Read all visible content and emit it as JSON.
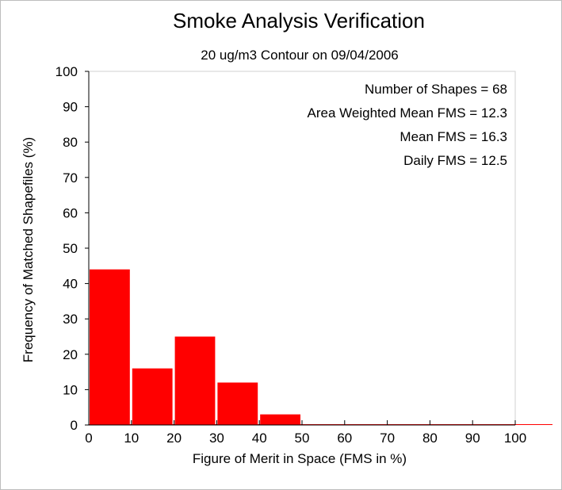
{
  "chart_data": {
    "type": "bar",
    "title": "Smoke Analysis Verification",
    "subtitle": "20 ug/m3 Contour on 09/04/2006",
    "xlabel": "Figure of Merit in Space (FMS in %)",
    "ylabel": "Frequency of Matched Shapefiles (%)",
    "x_ticks": [
      "0",
      "10",
      "20",
      "30",
      "40",
      "50",
      "60",
      "70",
      "80",
      "90",
      "100"
    ],
    "y_ticks": [
      "0",
      "10",
      "20",
      "30",
      "40",
      "50",
      "60",
      "70",
      "80",
      "90",
      "100"
    ],
    "xlim": [
      0,
      100
    ],
    "ylim": [
      0,
      100
    ],
    "bins": [
      {
        "from": 0,
        "to": 10,
        "value": 44
      },
      {
        "from": 10,
        "to": 20,
        "value": 16
      },
      {
        "from": 20,
        "to": 30,
        "value": 25
      },
      {
        "from": 30,
        "to": 40,
        "value": 12
      },
      {
        "from": 40,
        "to": 50,
        "value": 3
      },
      {
        "from": 50,
        "to": 60,
        "value": 0
      },
      {
        "from": 60,
        "to": 70,
        "value": 0
      },
      {
        "from": 70,
        "to": 80,
        "value": 0
      },
      {
        "from": 80,
        "to": 90,
        "value": 0
      },
      {
        "from": 90,
        "to": 100,
        "value": 0
      }
    ],
    "bar_color": "#ff0000",
    "grid": false,
    "annotations": [
      "Number of Shapes = 68",
      "Area Weighted Mean FMS = 12.3",
      "Mean FMS = 16.3",
      "Daily FMS = 12.5"
    ]
  }
}
